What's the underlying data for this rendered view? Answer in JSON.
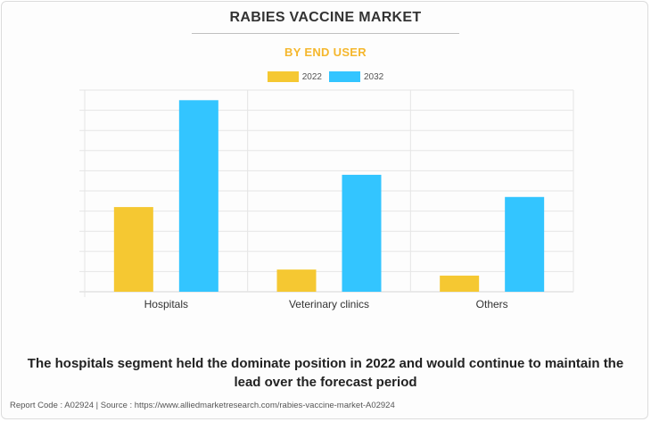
{
  "header": {
    "title": "RABIES VACCINE MARKET",
    "subtitle": "BY END USER"
  },
  "colors": {
    "subtitle": "#f5b72d",
    "series_2022": "#f5c832",
    "series_2032": "#33c5ff",
    "grid": "#e5e5e5",
    "axis": "#d5d5d5"
  },
  "chart_data": {
    "type": "bar",
    "categories": [
      "Hospitals",
      "Veterinary clinics",
      "Others"
    ],
    "series": [
      {
        "name": "2022",
        "values": [
          42,
          11,
          8
        ]
      },
      {
        "name": "2032",
        "values": [
          95,
          58,
          47
        ]
      }
    ],
    "ylim": [
      0,
      100
    ],
    "grid": true,
    "legend_position": "top-center",
    "y_tick_labels": false
  },
  "caption": "The hospitals segment held the dominate position in 2022 and would continue to maintain the lead over the forecast period",
  "footer": "Report Code : A02924  |  Source : https://www.alliedmarketresearch.com/rabies-vaccine-market-A02924"
}
